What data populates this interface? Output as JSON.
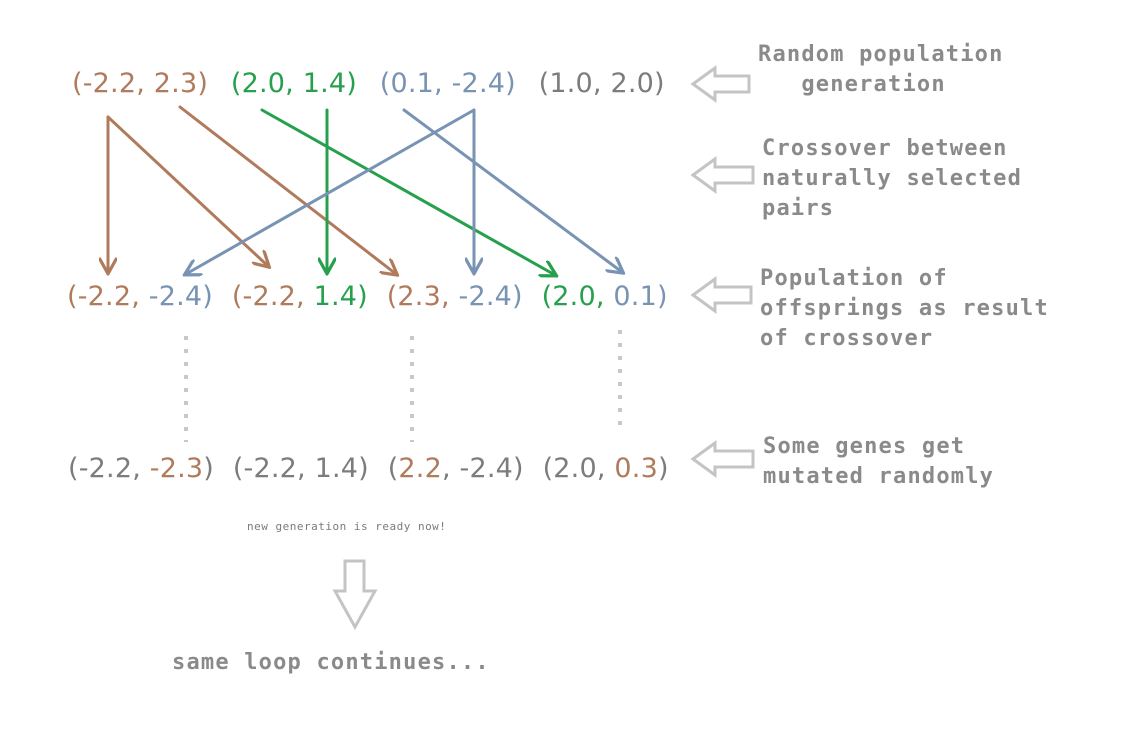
{
  "generations": {
    "initial": [
      {
        "text": "(-2.2, 2.3)",
        "color": "#b07b5c"
      },
      {
        "text": "(2.0, 1.4)",
        "color": "#26a04d"
      },
      {
        "text": "(0.1, -2.4)",
        "color": "#7893b3"
      },
      {
        "text": "(1.0, 2.0)",
        "color": "#7c7c7c"
      }
    ],
    "offspring": [
      {
        "open": "(",
        "a": "-2.2",
        "sep": ", ",
        "b": "-2.4",
        "close": ")",
        "a_color": "#b07b5c",
        "b_color": "#7893b3",
        "paren_color": "#b07b5c",
        "close_color": "#7893b3"
      },
      {
        "open": "(",
        "a": "-2.2",
        "sep": ", ",
        "b": "1.4",
        "close": ")",
        "a_color": "#b07b5c",
        "b_color": "#26a04d",
        "paren_color": "#b07b5c",
        "close_color": "#26a04d"
      },
      {
        "open": "(",
        "a": "2.3",
        "sep": ", ",
        "b": "-2.4",
        "close": ")",
        "a_color": "#b07b5c",
        "b_color": "#7893b3",
        "paren_color": "#b07b5c",
        "close_color": "#7893b3"
      },
      {
        "open": "(",
        "a": "2.0",
        "sep": ", ",
        "b": "0.1",
        "close": ")",
        "a_color": "#26a04d",
        "b_color": "#7893b3",
        "paren_color": "#26a04d",
        "close_color": "#7893b3"
      }
    ],
    "mutated": [
      {
        "open": "(",
        "a": "-2.2",
        "sep": ", ",
        "b": "-2.3",
        "close": ")",
        "a_color": "#7c7c7c",
        "b_color": "#b07b5c"
      },
      {
        "open": "(",
        "a": "-2.2",
        "sep": ", ",
        "b": "1.4",
        "close": ")",
        "a_color": "#7c7c7c",
        "b_color": "#7c7c7c"
      },
      {
        "open": "(",
        "a": "2.2",
        "sep": ", ",
        "b": "-2.4",
        "close": ")",
        "a_color": "#b07b5c",
        "b_color": "#7c7c7c"
      },
      {
        "open": "(",
        "a": "2.0",
        "sep": ", ",
        "b": "0.3",
        "close": ")",
        "a_color": "#7c7c7c",
        "b_color": "#b07b5c"
      }
    ]
  },
  "captions": {
    "random_population": [
      "Random population",
      "   generation"
    ],
    "crossover": [
      "Crossover between",
      "naturally selected",
      "pairs"
    ],
    "offspring_population": [
      "Population of",
      "offsprings as result",
      "of crossover"
    ],
    "mutation": [
      "Some genes get",
      "mutated randomly"
    ]
  },
  "note": "new generation is ready now!",
  "footer": "same loop continues...",
  "colors": {
    "brown": "#b07b5c",
    "green": "#26a04d",
    "blue": "#7893b3",
    "gray_text": "#7c7c7c",
    "hollow_arrow": "#c4c4c4",
    "dotted_line": "#c8c8c8"
  }
}
